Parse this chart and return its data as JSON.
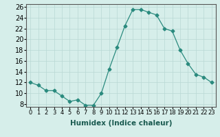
{
  "x": [
    0,
    1,
    2,
    3,
    4,
    5,
    6,
    7,
    8,
    9,
    10,
    11,
    12,
    13,
    14,
    15,
    16,
    17,
    18,
    19,
    20,
    21,
    22,
    23
  ],
  "y": [
    12,
    11.5,
    10.5,
    10.5,
    9.5,
    8.5,
    8.8,
    7.8,
    7.8,
    10,
    14.5,
    18.5,
    22.5,
    25.5,
    25.5,
    25,
    24.5,
    22,
    21.5,
    18,
    15.5,
    13.5,
    13,
    12
  ],
  "line_color": "#2a8a7e",
  "marker": "D",
  "marker_size": 2.5,
  "bg_color": "#d6eeea",
  "grid_color": "#b8d8d4",
  "xlabel": "Humidex (Indice chaleur)",
  "xlim": [
    -0.5,
    23.5
  ],
  "ylim": [
    7.5,
    26.5
  ],
  "yticks": [
    8,
    10,
    12,
    14,
    16,
    18,
    20,
    22,
    24,
    26
  ],
  "xticks": [
    0,
    1,
    2,
    3,
    4,
    5,
    6,
    7,
    8,
    9,
    10,
    11,
    12,
    13,
    14,
    15,
    16,
    17,
    18,
    19,
    20,
    21,
    22,
    23
  ],
  "xlabel_fontsize": 7.5,
  "ytick_fontsize": 7,
  "xtick_fontsize": 6
}
